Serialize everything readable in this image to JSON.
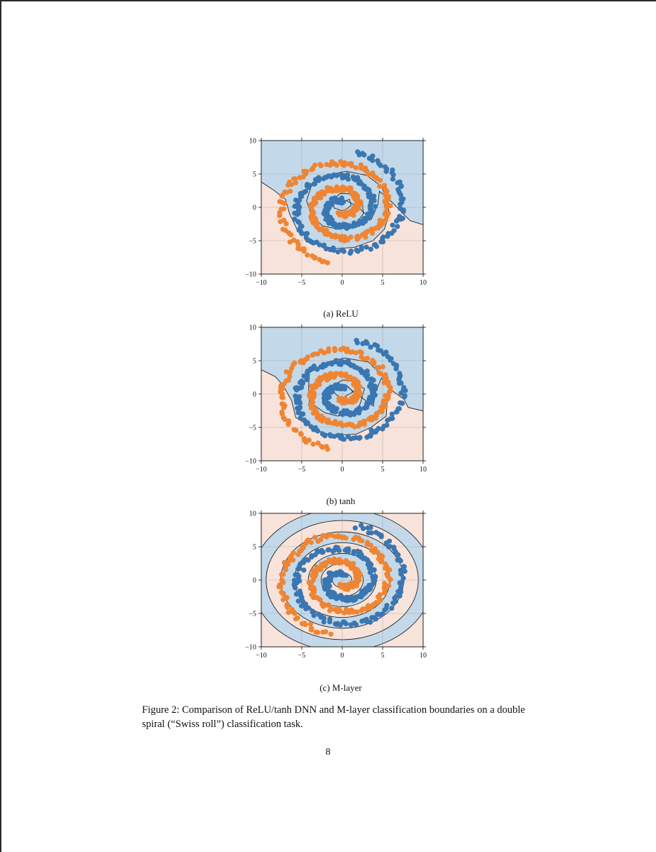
{
  "figure": {
    "caption": "Figure 2: Comparison of ReLU/tanh DNN and M-layer classification boundaries on a double spiral (“Swiss roll”) classification task.",
    "page_number": "8",
    "colors": {
      "class_blue": "#3a76b1",
      "class_orange": "#ef8533",
      "region_blue": "#c3d9ea",
      "region_orange": "#f8e3da"
    }
  },
  "chart_data": [
    {
      "type": "scatter",
      "subcaption": "(a) ReLU",
      "xlim": [
        -10,
        10
      ],
      "ylim": [
        -10,
        10
      ],
      "xticks": [
        "−10",
        "−5",
        "0",
        "5",
        "10"
      ],
      "yticks": [
        "−10",
        "−5",
        "0",
        "5",
        "10"
      ],
      "grid": true,
      "series": [
        {
          "class": "blue",
          "spiral_phase_deg": 0,
          "radius_range": [
            0.8,
            8.3
          ],
          "turns": 2.0
        },
        {
          "class": "orange",
          "spiral_phase_deg": 180,
          "radius_range": [
            0.8,
            8.3
          ],
          "turns": 2.0
        }
      ],
      "background": "two-class decision regions; blue region upper, orange region lower"
    },
    {
      "type": "scatter",
      "subcaption": "(b) tanh",
      "xlim": [
        -10,
        10
      ],
      "ylim": [
        -10,
        10
      ],
      "xticks": [
        "−10",
        "−5",
        "0",
        "5",
        "10"
      ],
      "yticks": [
        "−10",
        "−5",
        "0",
        "5",
        "10"
      ],
      "grid": true,
      "series": [
        {
          "class": "blue",
          "spiral_phase_deg": 0,
          "radius_range": [
            0.8,
            8.3
          ],
          "turns": 2.0
        },
        {
          "class": "orange",
          "spiral_phase_deg": 180,
          "radius_range": [
            0.8,
            8.3
          ],
          "turns": 2.0
        }
      ],
      "background": "two-class decision regions; blue region upper, orange region lower"
    },
    {
      "type": "scatter",
      "subcaption": "(c) M-layer",
      "xlim": [
        -10,
        10
      ],
      "ylim": [
        -10,
        10
      ],
      "xticks": [
        "−10",
        "−5",
        "0",
        "5",
        "10"
      ],
      "yticks": [
        "−10",
        "−5",
        "0",
        "5",
        "10"
      ],
      "grid": true,
      "series": [
        {
          "class": "blue",
          "spiral_phase_deg": 0,
          "radius_range": [
            0.8,
            8.3
          ],
          "turns": 2.0
        },
        {
          "class": "orange",
          "spiral_phase_deg": 180,
          "radius_range": [
            0.8,
            8.3
          ],
          "turns": 2.0
        }
      ],
      "background": "concentric alternating decision regions"
    }
  ]
}
